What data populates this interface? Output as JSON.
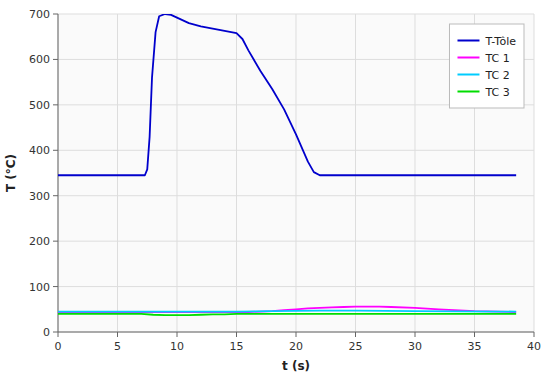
{
  "chart_data": {
    "type": "line",
    "xlabel": "t (s)",
    "ylabel": "T (°C)",
    "xlim": [
      0,
      40
    ],
    "ylim": [
      0,
      700
    ],
    "xticks": [
      0,
      5,
      10,
      15,
      20,
      25,
      30,
      35,
      40
    ],
    "yticks": [
      0,
      100,
      200,
      300,
      400,
      500,
      600,
      700
    ],
    "grid": true,
    "legend": "upper right",
    "series": [
      {
        "name": "T-Tôle",
        "color": "#0000cc",
        "x": [
          0,
          7.3,
          7.5,
          7.7,
          7.9,
          8.2,
          8.5,
          9.0,
          9.5,
          10.0,
          11.0,
          12.0,
          13.0,
          14.0,
          15.0,
          15.5,
          16.0,
          17.0,
          18.0,
          19.0,
          20.0,
          21.0,
          21.5,
          22.0,
          22.3,
          22.6,
          38.5
        ],
        "values": [
          345,
          345,
          358,
          430,
          560,
          660,
          695,
          700,
          698,
          692,
          680,
          673,
          668,
          663,
          658,
          645,
          620,
          575,
          535,
          490,
          435,
          375,
          352,
          345,
          345,
          345,
          345
        ]
      },
      {
        "name": "TC 1",
        "color": "#ff00ff",
        "x": [
          0,
          7.0,
          14.0,
          15.0,
          16.0,
          17.0,
          18.0,
          19.0,
          20.0,
          21.0,
          22.0,
          23.0,
          24.0,
          25.0,
          26.0,
          27.0,
          28.0,
          30.0,
          32.0,
          35.0,
          38.5
        ],
        "values": [
          44,
          44,
          44,
          44,
          44,
          45,
          46,
          48,
          50,
          52,
          53,
          54,
          55,
          56,
          56,
          56,
          55,
          53,
          50,
          46,
          44
        ]
      },
      {
        "name": "TC 2",
        "color": "#00ccff",
        "x": [
          0,
          14.0,
          15.0,
          18.0,
          22.0,
          25.0,
          30.0,
          38.5
        ],
        "values": [
          45,
          45,
          45,
          46,
          47,
          47,
          46,
          45
        ]
      },
      {
        "name": "TC 3",
        "color": "#00dd00",
        "x": [
          0,
          7.0,
          8.0,
          9.0,
          10.0,
          11.0,
          12.0,
          13.0,
          14.0,
          15.0,
          18.0,
          20.0,
          22.0,
          25.0,
          38.5
        ],
        "values": [
          40,
          40,
          38,
          37,
          37,
          37,
          38,
          39,
          39,
          40,
          40,
          40,
          40,
          40,
          40
        ]
      }
    ]
  }
}
